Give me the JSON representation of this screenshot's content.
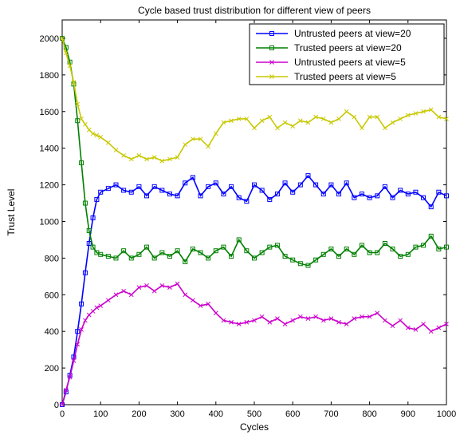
{
  "chart_data": {
    "type": "line",
    "title": "Cycle based trust distribution for different view of peers",
    "xlabel": "Cycles",
    "ylabel": "Trust Level",
    "xlim": [
      0,
      1000
    ],
    "ylim": [
      0,
      2100
    ],
    "xticks": [
      0,
      100,
      200,
      300,
      400,
      500,
      600,
      700,
      800,
      900,
      1000
    ],
    "yticks": [
      0,
      200,
      400,
      600,
      800,
      1000,
      1200,
      1400,
      1600,
      1800,
      2000
    ],
    "grid": false,
    "legend_position": "top-right",
    "series": [
      {
        "name": "Untrusted peers at view=20",
        "color": "#0000ff",
        "marker": "square",
        "x": [
          0,
          10,
          20,
          30,
          40,
          50,
          60,
          70,
          80,
          90,
          100,
          120,
          140,
          160,
          180,
          200,
          220,
          240,
          260,
          280,
          300,
          320,
          340,
          360,
          380,
          400,
          420,
          440,
          460,
          480,
          500,
          520,
          540,
          560,
          580,
          600,
          620,
          640,
          660,
          680,
          700,
          720,
          740,
          760,
          780,
          800,
          820,
          840,
          860,
          880,
          900,
          920,
          940,
          960,
          980,
          1000
        ],
        "y": [
          0,
          70,
          160,
          260,
          400,
          550,
          720,
          880,
          1020,
          1120,
          1160,
          1180,
          1200,
          1170,
          1160,
          1190,
          1140,
          1190,
          1170,
          1150,
          1140,
          1210,
          1240,
          1140,
          1190,
          1210,
          1150,
          1190,
          1130,
          1110,
          1200,
          1170,
          1120,
          1150,
          1210,
          1160,
          1200,
          1250,
          1200,
          1150,
          1200,
          1150,
          1210,
          1130,
          1150,
          1130,
          1140,
          1190,
          1130,
          1170,
          1150,
          1160,
          1130,
          1080,
          1160,
          1140
        ]
      },
      {
        "name": "Trusted peers at view=20",
        "color": "#008000",
        "marker": "square",
        "x": [
          0,
          10,
          20,
          30,
          40,
          50,
          60,
          70,
          80,
          90,
          100,
          120,
          140,
          160,
          180,
          200,
          220,
          240,
          260,
          280,
          300,
          320,
          340,
          360,
          380,
          400,
          420,
          440,
          460,
          480,
          500,
          520,
          540,
          560,
          580,
          600,
          620,
          640,
          660,
          680,
          700,
          720,
          740,
          760,
          780,
          800,
          820,
          840,
          860,
          880,
          900,
          920,
          940,
          960,
          980,
          1000
        ],
        "y": [
          2000,
          1950,
          1870,
          1750,
          1550,
          1320,
          1100,
          950,
          860,
          830,
          820,
          810,
          800,
          840,
          800,
          820,
          860,
          800,
          830,
          810,
          840,
          780,
          850,
          830,
          800,
          840,
          860,
          810,
          900,
          840,
          800,
          830,
          860,
          870,
          810,
          790,
          770,
          760,
          790,
          820,
          850,
          810,
          850,
          820,
          870,
          830,
          830,
          880,
          850,
          810,
          820,
          860,
          870,
          920,
          850,
          860
        ]
      },
      {
        "name": "Untrusted peers at view=5",
        "color": "#cc00cc",
        "marker": "x",
        "x": [
          0,
          10,
          20,
          30,
          40,
          50,
          60,
          70,
          80,
          90,
          100,
          120,
          140,
          160,
          180,
          200,
          220,
          240,
          260,
          280,
          300,
          320,
          340,
          360,
          380,
          400,
          420,
          440,
          460,
          480,
          500,
          520,
          540,
          560,
          580,
          600,
          620,
          640,
          660,
          680,
          700,
          720,
          740,
          760,
          780,
          800,
          820,
          840,
          860,
          880,
          900,
          920,
          940,
          960,
          980,
          1000
        ],
        "y": [
          0,
          80,
          150,
          240,
          330,
          410,
          460,
          490,
          510,
          530,
          540,
          570,
          600,
          620,
          600,
          640,
          650,
          620,
          650,
          640,
          660,
          600,
          570,
          540,
          550,
          500,
          460,
          450,
          440,
          450,
          460,
          480,
          450,
          470,
          440,
          460,
          480,
          470,
          480,
          460,
          470,
          450,
          440,
          470,
          480,
          480,
          500,
          460,
          430,
          460,
          420,
          410,
          440,
          400,
          420,
          440
        ]
      },
      {
        "name": "Trusted peers at view=5",
        "color": "#c8c800",
        "marker": "x",
        "x": [
          0,
          10,
          20,
          30,
          40,
          50,
          60,
          70,
          80,
          90,
          100,
          120,
          140,
          160,
          180,
          200,
          220,
          240,
          260,
          280,
          300,
          320,
          340,
          360,
          380,
          400,
          420,
          440,
          460,
          480,
          500,
          520,
          540,
          560,
          580,
          600,
          620,
          640,
          660,
          680,
          700,
          720,
          740,
          760,
          780,
          800,
          820,
          840,
          860,
          880,
          900,
          920,
          940,
          960,
          980,
          1000
        ],
        "y": [
          2000,
          1920,
          1850,
          1760,
          1640,
          1560,
          1530,
          1500,
          1480,
          1470,
          1460,
          1430,
          1390,
          1360,
          1340,
          1360,
          1340,
          1350,
          1330,
          1340,
          1350,
          1420,
          1450,
          1450,
          1410,
          1480,
          1540,
          1550,
          1560,
          1560,
          1510,
          1550,
          1570,
          1510,
          1540,
          1520,
          1550,
          1540,
          1570,
          1560,
          1540,
          1560,
          1600,
          1570,
          1510,
          1570,
          1570,
          1510,
          1540,
          1560,
          1580,
          1590,
          1600,
          1610,
          1570,
          1560
        ]
      }
    ]
  }
}
